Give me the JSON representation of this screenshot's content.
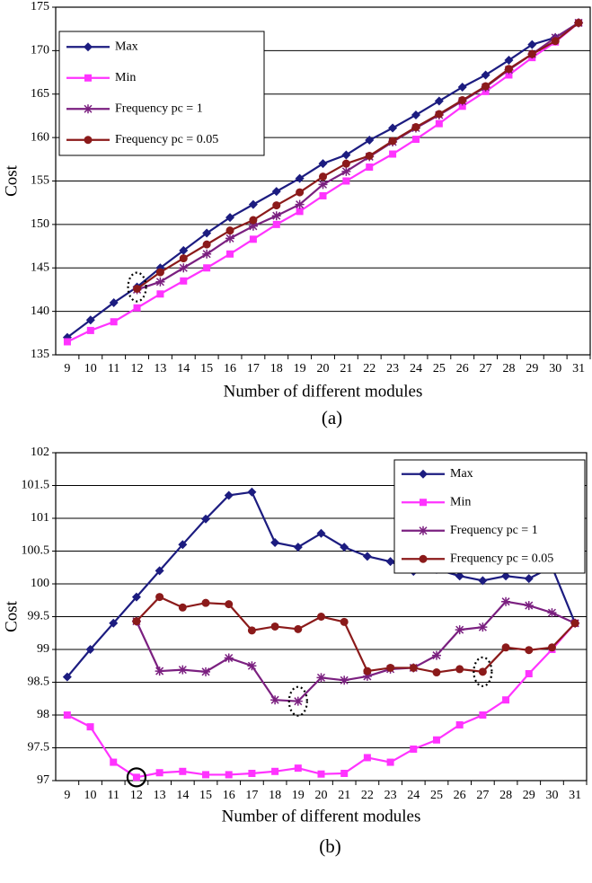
{
  "chart_data": [
    {
      "type": "line",
      "caption": "(a)",
      "y_label": "Cost",
      "x_label": "Number of different modules",
      "categories": [
        9,
        10,
        11,
        12,
        13,
        14,
        15,
        16,
        17,
        18,
        19,
        20,
        21,
        22,
        23,
        24,
        25,
        26,
        27,
        28,
        29,
        30,
        31
      ],
      "ylim": [
        135,
        175
      ],
      "yticks": [
        135,
        140,
        145,
        150,
        155,
        160,
        165,
        170,
        175
      ],
      "grid": true,
      "legend": "top-left",
      "series": [
        {
          "name": "Max",
          "color": "#1c1c80",
          "marker": "diamond",
          "values": [
            137,
            139,
            141,
            142.8,
            145,
            147,
            149,
            150.8,
            152.3,
            153.8,
            155.3,
            157,
            158,
            159.7,
            161.1,
            162.6,
            164.2,
            165.8,
            167.2,
            168.9,
            170.7,
            171.5,
            173.2
          ]
        },
        {
          "name": "Min",
          "color": "#ff33ff",
          "marker": "square",
          "values": [
            136.5,
            137.8,
            138.8,
            140.4,
            142,
            143.5,
            145,
            146.6,
            148.3,
            150,
            151.5,
            153.3,
            155,
            156.6,
            158.1,
            159.8,
            161.6,
            163.6,
            165.3,
            167.2,
            169.2,
            171,
            173.2
          ]
        },
        {
          "name": "Frequency pc = 1",
          "color": "#7b2080",
          "marker": "asterisk",
          "values": [
            null,
            null,
            null,
            142.5,
            143.4,
            145,
            146.6,
            148.4,
            149.8,
            151,
            152.3,
            154.6,
            156.1,
            157.8,
            159.5,
            161.1,
            162.6,
            164.2,
            165.8,
            167.8,
            169.6,
            171.5,
            173.2
          ]
        },
        {
          "name": "Frequency pc = 0.05",
          "color": "#8b1a1a",
          "marker": "circle",
          "values": [
            null,
            null,
            null,
            142.6,
            144.5,
            146.1,
            147.7,
            149.3,
            150.5,
            152.2,
            153.7,
            155.5,
            157,
            157.9,
            159.6,
            161.2,
            162.7,
            164.3,
            165.9,
            167.9,
            169.6,
            171.1,
            173.2
          ]
        }
      ]
    },
    {
      "type": "line",
      "caption": "(b)",
      "y_label": "Cost",
      "x_label": "Number of different modules",
      "categories": [
        9,
        10,
        11,
        12,
        13,
        14,
        15,
        16,
        17,
        18,
        19,
        20,
        21,
        22,
        23,
        24,
        25,
        26,
        27,
        28,
        29,
        30,
        31
      ],
      "ylim": [
        97,
        102
      ],
      "yticks": [
        97,
        97.5,
        98,
        98.5,
        99,
        99.5,
        100,
        100.5,
        101,
        101.5,
        102
      ],
      "grid": true,
      "legend": "top-right",
      "series": [
        {
          "name": "Max",
          "color": "#1c1c80",
          "marker": "diamond",
          "values": [
            98.58,
            99.0,
            99.4,
            99.8,
            100.2,
            100.6,
            100.99,
            101.35,
            101.4,
            100.63,
            100.56,
            100.77,
            100.56,
            100.42,
            100.34,
            100.19,
            100.22,
            100.12,
            100.05,
            100.12,
            100.08,
            100.26,
            99.4
          ]
        },
        {
          "name": "Min",
          "color": "#ff33ff",
          "marker": "square",
          "values": [
            98.0,
            97.82,
            97.28,
            97.05,
            97.12,
            97.14,
            97.09,
            97.09,
            97.11,
            97.14,
            97.19,
            97.1,
            97.11,
            97.35,
            97.28,
            97.48,
            97.62,
            97.85,
            98.0,
            98.23,
            98.63,
            99.0,
            99.4
          ]
        },
        {
          "name": "Frequency pc = 1",
          "color": "#7b2080",
          "marker": "asterisk",
          "values": [
            null,
            null,
            null,
            99.43,
            98.67,
            98.69,
            98.66,
            98.87,
            98.75,
            98.23,
            98.21,
            98.57,
            98.53,
            98.59,
            98.7,
            98.72,
            98.91,
            99.3,
            99.34,
            99.73,
            99.67,
            99.56,
            99.4
          ]
        },
        {
          "name": "Frequency pc = 0.05",
          "color": "#8b1a1a",
          "marker": "circle",
          "values": [
            null,
            null,
            null,
            99.43,
            99.8,
            99.64,
            99.71,
            99.69,
            99.29,
            99.35,
            99.31,
            99.5,
            99.42,
            98.67,
            98.72,
            98.72,
            98.65,
            98.7,
            98.66,
            99.03,
            98.99,
            99.03,
            99.4
          ]
        }
      ]
    }
  ]
}
